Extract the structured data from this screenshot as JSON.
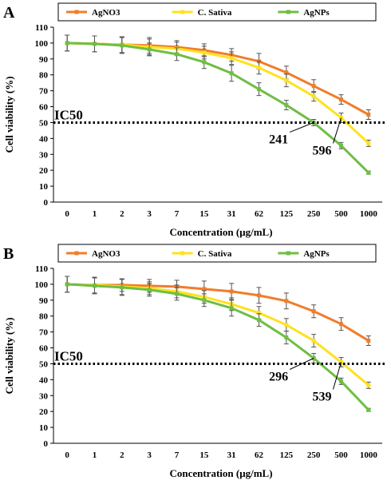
{
  "panels": [
    {
      "letter": "A",
      "chart_data": {
        "type": "line",
        "title": "",
        "xlabel": "Concentration (μg/mL)",
        "ylabel": "Cell viability (%)",
        "ylim": [
          0,
          110
        ],
        "yticks": [
          0,
          10,
          20,
          30,
          40,
          50,
          60,
          70,
          80,
          90,
          100,
          110
        ],
        "categories": [
          "0",
          "1",
          "2",
          "3",
          "7",
          "15",
          "31",
          "62",
          "125",
          "250",
          "500",
          "1000"
        ],
        "legend_position": "top",
        "grid": false,
        "series": [
          {
            "name": "AgNO3",
            "color": "#f07d2b",
            "values": [
              100,
              99.5,
              99,
              98.5,
              97.5,
              95.5,
              92.5,
              88.5,
              81.5,
              73,
              64.5,
              55
            ],
            "errors": [
              5,
              5,
              5,
              5,
              4,
              4,
              4,
              5,
              4,
              4,
              3,
              3
            ]
          },
          {
            "name": "C. Sativa",
            "color": "#ffe11e",
            "values": [
              100,
              99.5,
              99,
              97.5,
              96.5,
              94,
              90.5,
              84.5,
              76.5,
              66.5,
              53,
              37
            ],
            "errors": [
              5,
              5,
              5,
              5,
              4,
              4,
              4,
              4,
              4,
              3,
              3,
              2
            ]
          },
          {
            "name": "AgNPs",
            "color": "#6fbe44",
            "values": [
              100,
              99.5,
              98.5,
              96,
              93,
              88,
              81,
              71,
              61,
              50,
              35.5,
              18.5
            ],
            "errors": [
              5,
              5,
              5,
              4,
              4,
              4,
              5,
              4,
              3,
              2,
              2,
              1
            ]
          }
        ],
        "reference_line": {
          "label": "IC50",
          "y": 50
        },
        "annotations": [
          {
            "text": "241",
            "target_series": "AgNPs",
            "target_index": 9
          },
          {
            "text": "596",
            "target_series": "C. Sativa",
            "target_index": 10
          }
        ]
      }
    },
    {
      "letter": "B",
      "chart_data": {
        "type": "line",
        "title": "",
        "xlabel": "Concentration (μg/mL)",
        "ylabel": "Cell viability (%)",
        "ylim": [
          0,
          110
        ],
        "yticks": [
          0,
          10,
          20,
          30,
          40,
          50,
          60,
          70,
          80,
          90,
          100,
          110
        ],
        "categories": [
          "0",
          "1",
          "2",
          "3",
          "7",
          "15",
          "31",
          "62",
          "125",
          "250",
          "500",
          "1000"
        ],
        "legend_position": "top",
        "grid": false,
        "series": [
          {
            "name": "AgNO3",
            "color": "#f07d2b",
            "values": [
              100,
              99.5,
              99.5,
              99,
              98.5,
              97,
              95.5,
              93,
              89.5,
              83,
              75,
              64.5
            ],
            "errors": [
              5,
              5,
              4,
              4,
              4,
              5,
              5,
              5,
              5,
              4,
              4,
              3
            ]
          },
          {
            "name": "C. Sativa",
            "color": "#ffe11e",
            "values": [
              100,
              99.5,
              98.5,
              97.5,
              95.5,
              92,
              87.5,
              82,
              74.5,
              64.5,
              51,
              36.5
            ],
            "errors": [
              5,
              5,
              5,
              4,
              4,
              4,
              4,
              4,
              4,
              4,
              3,
              2
            ]
          },
          {
            "name": "AgNPs",
            "color": "#6fbe44",
            "values": [
              100,
              99,
              98,
              96.5,
              94,
              90,
              85,
              77.5,
              66.5,
              53.5,
              39,
              21
            ],
            "errors": [
              5,
              5,
              5,
              4,
              4,
              4,
              5,
              4,
              4,
              3,
              2,
              1
            ]
          }
        ],
        "reference_line": {
          "label": "IC50",
          "y": 50
        },
        "annotations": [
          {
            "text": "296",
            "target_series": "AgNPs",
            "target_index": 9
          },
          {
            "text": "539",
            "target_series": "C. Sativa",
            "target_index": 10
          }
        ]
      }
    }
  ]
}
